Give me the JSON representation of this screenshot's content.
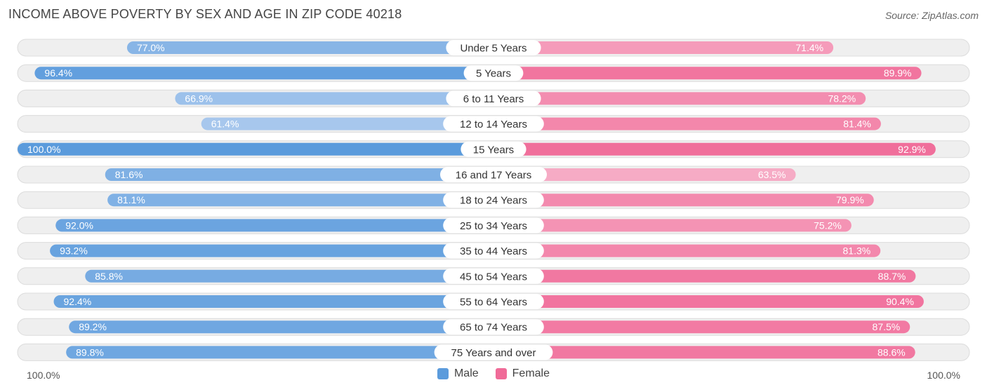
{
  "title": "INCOME ABOVE POVERTY BY SEX AND AGE IN ZIP CODE 40218",
  "source": "Source: ZipAtlas.com",
  "axis": {
    "left_label": "100.0%",
    "right_label": "100.0%"
  },
  "legend": {
    "male_label": "Male",
    "female_label": "Female"
  },
  "colors": {
    "male_strong": "#5b9bdc",
    "male_light": "#aac9ee",
    "female_strong": "#f06b98",
    "female_light": "#f7b2ca",
    "track": "#efefef"
  },
  "chart_data": {
    "type": "bar",
    "orientation": "horizontal-diverging",
    "categories": [
      "Under 5 Years",
      "5 Years",
      "6 to 11 Years",
      "12 to 14 Years",
      "15 Years",
      "16 and 17 Years",
      "18 to 24 Years",
      "25 to 34 Years",
      "35 to 44 Years",
      "45 to 54 Years",
      "55 to 64 Years",
      "65 to 74 Years",
      "75 Years and over"
    ],
    "series": [
      {
        "name": "Male",
        "values": [
          77.0,
          96.4,
          66.9,
          61.4,
          100.0,
          81.6,
          81.1,
          92.0,
          93.2,
          85.8,
          92.4,
          89.2,
          89.8
        ]
      },
      {
        "name": "Female",
        "values": [
          71.4,
          89.9,
          78.2,
          81.4,
          92.9,
          63.5,
          79.9,
          75.2,
          81.3,
          88.7,
          90.4,
          87.5,
          88.6
        ]
      }
    ],
    "xlim": [
      0,
      100
    ],
    "value_format": "%.1f%",
    "legend_position": "bottom-center"
  }
}
